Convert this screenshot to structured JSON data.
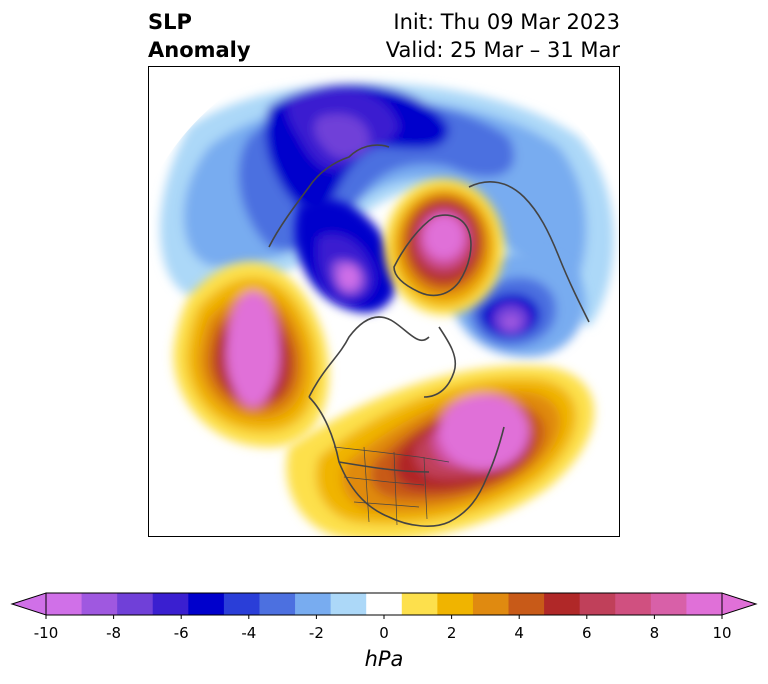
{
  "title": {
    "left_line1": "SLP",
    "left_line2": "Anomaly",
    "init": "Init: Thu 09 Mar 2023",
    "valid": "Valid: 25 Mar – 31 Mar"
  },
  "colorbar": {
    "units": "hPa",
    "min": -10,
    "max": 10,
    "extend": "both",
    "tick_labels": [
      "-10",
      "-8",
      "-6",
      "-4",
      "-2",
      "0",
      "2",
      "4",
      "6",
      "8",
      "10"
    ],
    "tick_values": [
      -10,
      -8,
      -6,
      -4,
      -2,
      0,
      2,
      4,
      6,
      8,
      10
    ],
    "bounds": [
      -10,
      -9,
      -8,
      -7,
      -6,
      -5,
      -4,
      -3,
      -2,
      -1,
      1,
      2,
      3,
      4,
      5,
      6,
      7,
      8,
      9,
      10
    ],
    "colors": [
      "#d070e8",
      "#9f58e0",
      "#7040d8",
      "#3a1fd0",
      "#0000cc",
      "#2a3ed8",
      "#4c70e0",
      "#78acf0",
      "#acd8f8",
      "#ffffff",
      "#fde04c",
      "#f0b400",
      "#e08a10",
      "#c85a18",
      "#b02828",
      "#c0405a",
      "#d05080",
      "#d860a8",
      "#e070d8"
    ],
    "under_color": "#d070e8",
    "over_color": "#e070d8"
  },
  "map": {
    "projection": "north-polar-stereographic",
    "variable": "sea level pressure anomaly",
    "anomaly_centers": [
      {
        "region": "northern Europe / Scandinavia",
        "sign": "negative",
        "peak": -9
      },
      {
        "region": "Greenland / Arctic Ocean",
        "sign": "negative",
        "peak": -10
      },
      {
        "region": "Barents-Kara Sea / Siberia",
        "sign": "positive",
        "peak": 10
      },
      {
        "region": "central Siberia",
        "sign": "negative",
        "peak": -9
      },
      {
        "region": "North Pacific",
        "sign": "positive",
        "peak": 10
      },
      {
        "region": "North Atlantic / eastern US",
        "sign": "positive",
        "peak": 10
      }
    ]
  }
}
